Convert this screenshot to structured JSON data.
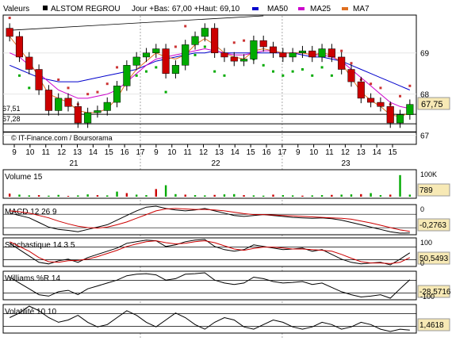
{
  "header": {
    "valeurs_label": "Valeurs",
    "stock_name": "ALSTOM REGROU",
    "day_info": "Jour +Bas: 67,00 +Haut: 69,10",
    "legend": [
      {
        "label": "MA50",
        "color": "#0000cc"
      },
      {
        "label": "MA25",
        "color": "#cc00cc"
      },
      {
        "label": "MA7",
        "color": "#e07020"
      }
    ]
  },
  "main": {
    "credit": "© IT-Finance.com / Boursorama",
    "level_labels": [
      "67,51",
      "67,28"
    ],
    "current_price": "67,75"
  },
  "chart_data": [
    {
      "type": "candlestick",
      "title": "ALSTOM REGROU",
      "ylim": [
        66.8,
        69.9
      ],
      "y_ticks": [
        "67",
        "68",
        "69"
      ],
      "x_ticks": [
        "9",
        "10",
        "11",
        "12",
        "13",
        "14",
        "15",
        "16",
        "17",
        "9",
        "10",
        "11",
        "12",
        "13",
        "14",
        "15",
        "16",
        "17",
        "9",
        "10",
        "11",
        "12",
        "13",
        "14",
        "15"
      ],
      "day_labels": [
        "21",
        "22",
        "23"
      ],
      "price_levels": [
        67.51,
        67.28
      ],
      "last_price": 67.75,
      "colors": {
        "up": "#00aa00",
        "down": "#cc0000",
        "sar": "#00aa00",
        "sar_down": "#cc3333"
      },
      "close": [
        69.4,
        68.9,
        68.6,
        68.1,
        67.6,
        67.9,
        67.7,
        67.3,
        67.55,
        67.6,
        67.8,
        68.2,
        68.7,
        68.9,
        69.0,
        69.1,
        68.5,
        68.7,
        69.2,
        69.4,
        69.6,
        69.0,
        68.9,
        68.8,
        68.85,
        69.3,
        69.15,
        69.0,
        68.9,
        69.0,
        69.05,
        68.9,
        69.1,
        68.9,
        68.6,
        68.3,
        67.9,
        67.8,
        67.7,
        67.3,
        67.5,
        67.75
      ],
      "series": [
        {
          "name": "MA50",
          "values": [
            68.7,
            68.6,
            68.5,
            68.4,
            68.35,
            68.3,
            68.3,
            68.3,
            68.35,
            68.4,
            68.45,
            68.5,
            68.55,
            68.6,
            68.7,
            68.8,
            68.85,
            68.9,
            68.95,
            69.0,
            69.0,
            69.05,
            69.0,
            69.0,
            69.0,
            69.0,
            69.0,
            69.0,
            69.0,
            69.0,
            68.95,
            68.9,
            68.9,
            68.85,
            68.8,
            68.7,
            68.6,
            68.5,
            68.4,
            68.3,
            68.2,
            68.1
          ]
        },
        {
          "name": "MA25",
          "values": [
            69.0,
            68.9,
            68.7,
            68.5,
            68.3,
            68.1,
            68.0,
            67.9,
            67.9,
            67.95,
            68.0,
            68.1,
            68.3,
            68.5,
            68.7,
            68.85,
            68.9,
            68.95,
            69.0,
            69.05,
            69.1,
            69.05,
            69.0,
            68.95,
            68.95,
            69.0,
            69.05,
            69.05,
            69.0,
            69.0,
            69.0,
            68.95,
            68.95,
            68.9,
            68.8,
            68.6,
            68.4,
            68.2,
            68.0,
            67.8,
            67.7,
            67.65
          ]
        },
        {
          "name": "MA7",
          "values": [
            69.4,
            69.1,
            68.8,
            68.4,
            68.0,
            67.9,
            67.8,
            67.6,
            67.55,
            67.55,
            67.65,
            67.9,
            68.3,
            68.6,
            68.8,
            69.0,
            68.9,
            68.85,
            68.95,
            69.2,
            69.35,
            69.2,
            69.0,
            68.9,
            68.85,
            69.05,
            69.1,
            69.05,
            69.0,
            69.0,
            69.0,
            68.95,
            69.0,
            68.95,
            68.75,
            68.4,
            68.05,
            67.85,
            67.7,
            67.5,
            67.45,
            67.55
          ]
        }
      ]
    },
    {
      "type": "bar",
      "title": "Volume 15",
      "y_ticks": [
        "100K"
      ],
      "last_value": "789",
      "values": [
        12,
        8,
        5,
        6,
        4,
        7,
        3,
        5,
        9,
        6,
        5,
        20,
        14,
        8,
        6,
        30,
        45,
        10,
        8,
        6,
        5,
        7,
        9,
        10,
        6,
        5,
        4,
        8,
        6,
        5,
        4,
        5,
        6,
        7,
        8,
        9,
        10,
        14,
        6,
        8,
        85,
        8
      ]
    },
    {
      "type": "line",
      "title": "MACD 12 26 9",
      "y_ticks": [
        "0"
      ],
      "last_value": "-0,2763",
      "series": [
        {
          "name": "MACD",
          "values": [
            0.15,
            0.1,
            0.05,
            -0.05,
            -0.15,
            -0.2,
            -0.22,
            -0.25,
            -0.2,
            -0.15,
            -0.1,
            0.0,
            0.1,
            0.2,
            0.28,
            0.3,
            0.25,
            0.22,
            0.2,
            0.22,
            0.25,
            0.2,
            0.15,
            0.1,
            0.08,
            0.1,
            0.12,
            0.1,
            0.08,
            0.06,
            0.05,
            0.04,
            0.05,
            0.03,
            0.0,
            -0.05,
            -0.1,
            -0.15,
            -0.2,
            -0.25,
            -0.28,
            -0.276
          ]
        },
        {
          "name": "Signal",
          "values": [
            0.2,
            0.18,
            0.15,
            0.1,
            0.05,
            -0.02,
            -0.08,
            -0.13,
            -0.16,
            -0.17,
            -0.15,
            -0.1,
            -0.04,
            0.04,
            0.12,
            0.2,
            0.24,
            0.25,
            0.24,
            0.23,
            0.23,
            0.22,
            0.2,
            0.17,
            0.14,
            0.12,
            0.12,
            0.11,
            0.1,
            0.09,
            0.08,
            0.07,
            0.06,
            0.05,
            0.04,
            0.02,
            -0.02,
            -0.06,
            -0.11,
            -0.16,
            -0.21,
            -0.24
          ]
        }
      ]
    },
    {
      "type": "line",
      "title": "Stochastique 14 3 5",
      "y_ticks": [
        "100",
        "0"
      ],
      "last_value": "50,5493",
      "series": [
        {
          "name": "%K",
          "values": [
            80,
            60,
            40,
            20,
            15,
            25,
            30,
            20,
            35,
            45,
            55,
            65,
            80,
            85,
            90,
            88,
            70,
            75,
            85,
            90,
            92,
            70,
            60,
            55,
            60,
            75,
            70,
            65,
            60,
            62,
            65,
            55,
            60,
            45,
            30,
            20,
            15,
            18,
            20,
            12,
            30,
            50
          ]
        },
        {
          "name": "%D",
          "values": [
            85,
            70,
            55,
            35,
            22,
            20,
            25,
            26,
            30,
            38,
            48,
            58,
            70,
            78,
            85,
            88,
            82,
            78,
            80,
            85,
            88,
            82,
            72,
            62,
            58,
            64,
            68,
            68,
            65,
            62,
            62,
            60,
            58,
            55,
            45,
            33,
            22,
            18,
            18,
            16,
            20,
            35
          ]
        }
      ]
    },
    {
      "type": "line",
      "title": "Williams %R 14",
      "y_ticks": [
        "-100"
      ],
      "last_value": "-28,5716",
      "series": [
        {
          "name": "Williams %R",
          "values": [
            -20,
            -40,
            -60,
            -80,
            -85,
            -70,
            -65,
            -80,
            -60,
            -50,
            -40,
            -30,
            -15,
            -10,
            -8,
            -12,
            -30,
            -25,
            -10,
            -8,
            -5,
            -30,
            -40,
            -45,
            -40,
            -20,
            -25,
            -35,
            -40,
            -38,
            -35,
            -45,
            -40,
            -55,
            -70,
            -80,
            -88,
            -85,
            -80,
            -92,
            -60,
            -28.57
          ]
        }
      ]
    },
    {
      "type": "line",
      "title": "Volatilité 10 10",
      "last_value": "1,4618",
      "series": [
        {
          "name": "Volatilité",
          "values": [
            2.0,
            2.2,
            2.5,
            2.3,
            2.0,
            1.8,
            1.9,
            2.1,
            1.8,
            1.6,
            1.7,
            2.0,
            2.3,
            2.1,
            1.8,
            1.6,
            1.9,
            2.2,
            2.0,
            1.7,
            1.5,
            1.8,
            2.0,
            1.9,
            1.6,
            1.5,
            1.7,
            1.9,
            1.8,
            1.6,
            1.5,
            1.6,
            1.8,
            1.7,
            1.5,
            1.6,
            1.8,
            1.7,
            1.5,
            1.4,
            1.5,
            1.46
          ]
        }
      ]
    }
  ]
}
